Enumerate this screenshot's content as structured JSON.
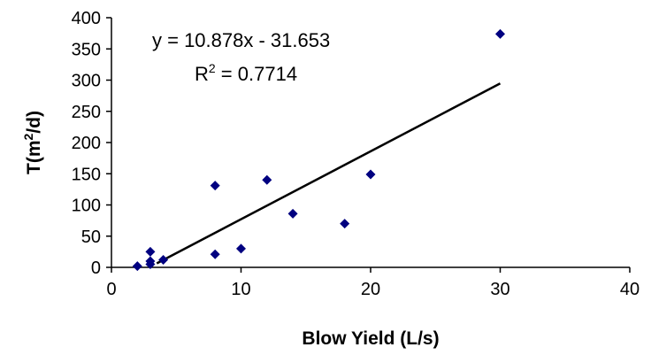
{
  "chart_data": {
    "type": "scatter",
    "xlabel": "Blow Yield (L/s)",
    "ylabel": {
      "prefix": "T(m",
      "sup": "2",
      "suffix": "/d)"
    },
    "xlim": [
      0,
      40
    ],
    "ylim": [
      0,
      400
    ],
    "x_ticks": [
      0,
      10,
      20,
      30,
      40
    ],
    "y_ticks": [
      0,
      50,
      100,
      150,
      200,
      250,
      300,
      350,
      400
    ],
    "grid": false,
    "legend": "none",
    "marker": "diamond",
    "marker_color": "#000080",
    "series": [
      {
        "points": [
          {
            "x": 2,
            "y": 2
          },
          {
            "x": 3,
            "y": 25
          },
          {
            "x": 3,
            "y": 10
          },
          {
            "x": 3,
            "y": 5
          },
          {
            "x": 4,
            "y": 12
          },
          {
            "x": 8,
            "y": 131
          },
          {
            "x": 8,
            "y": 21
          },
          {
            "x": 10,
            "y": 30
          },
          {
            "x": 12,
            "y": 140
          },
          {
            "x": 14,
            "y": 86
          },
          {
            "x": 18,
            "y": 70
          },
          {
            "x": 20,
            "y": 149
          },
          {
            "x": 30,
            "y": 374
          }
        ]
      }
    ],
    "trendline": {
      "slope": 10.878,
      "intercept": -31.653,
      "x_range": [
        3.5,
        30
      ],
      "color": "#000000",
      "equation_label": "y = 10.878x - 31.653",
      "r2_label": {
        "prefix": "R",
        "sup": "2",
        "suffix": " = 0.7714"
      }
    }
  }
}
